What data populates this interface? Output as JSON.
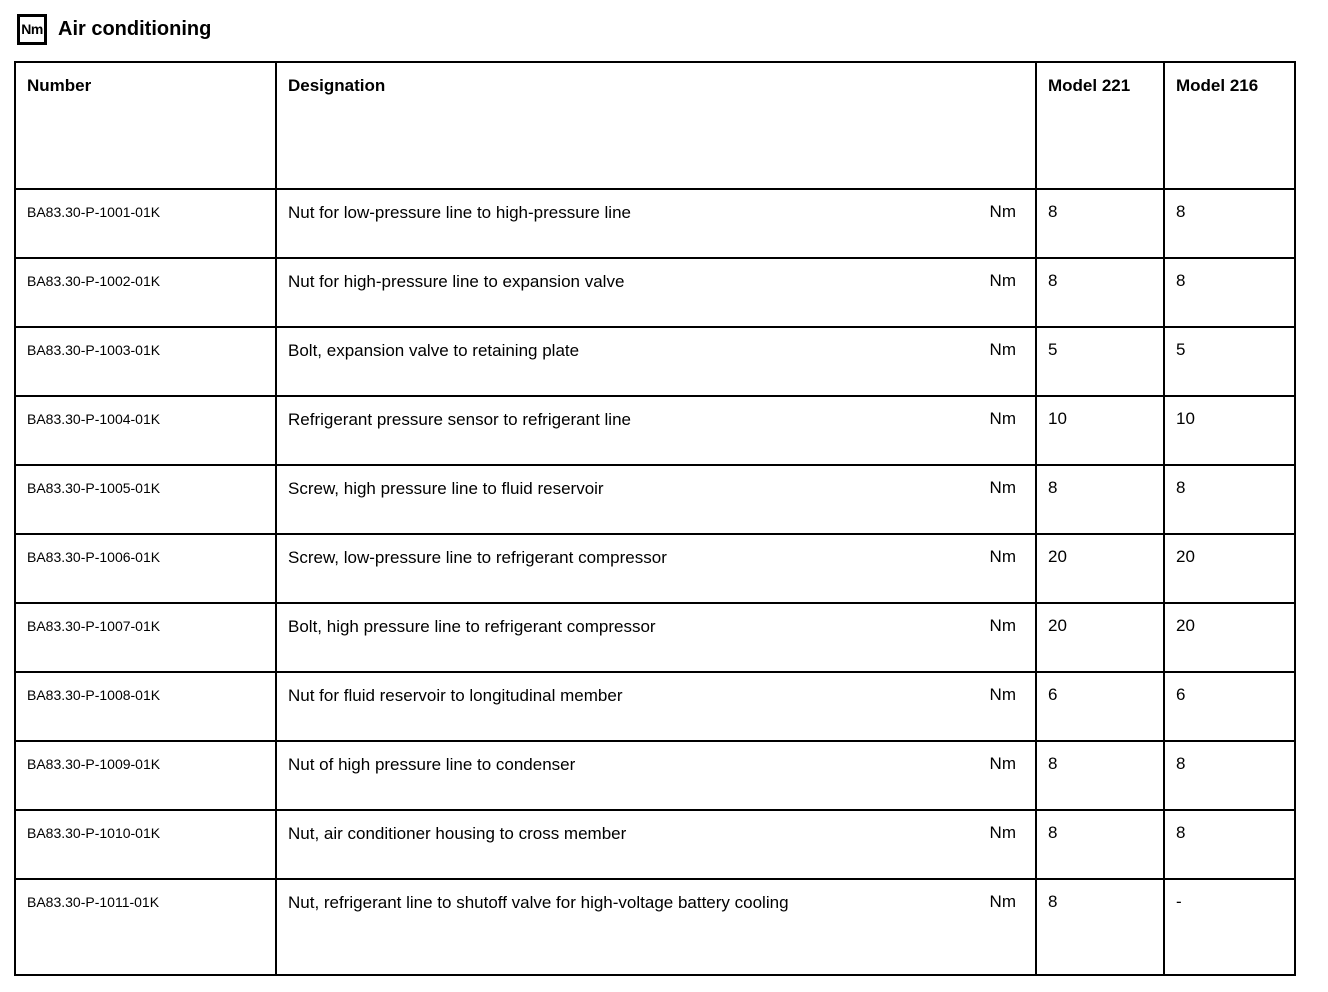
{
  "header": {
    "icon_label": "Nm",
    "title": "Air conditioning"
  },
  "table": {
    "headers": {
      "number": "Number",
      "designation": "Designation",
      "model221": "Model 221",
      "model216": "Model 216"
    },
    "rows": [
      {
        "number": "BA83.30-P-1001-01K",
        "designation": "Nut for low-pressure line to high-pressure line",
        "unit": "Nm",
        "model221": "8",
        "model216": "8"
      },
      {
        "number": "BA83.30-P-1002-01K",
        "designation": "Nut for high-pressure line to expansion valve",
        "unit": "Nm",
        "model221": "8",
        "model216": "8"
      },
      {
        "number": "BA83.30-P-1003-01K",
        "designation": "Bolt, expansion valve to retaining plate",
        "unit": "Nm",
        "model221": "5",
        "model216": "5"
      },
      {
        "number": "BA83.30-P-1004-01K",
        "designation": "Refrigerant pressure sensor to refrigerant line",
        "unit": "Nm",
        "model221": "10",
        "model216": "10"
      },
      {
        "number": "BA83.30-P-1005-01K",
        "designation": "Screw, high pressure line to fluid reservoir",
        "unit": "Nm",
        "model221": "8",
        "model216": "8"
      },
      {
        "number": "BA83.30-P-1006-01K",
        "designation": "Screw, low-pressure line to refrigerant compressor",
        "unit": "Nm",
        "model221": "20",
        "model216": "20"
      },
      {
        "number": "BA83.30-P-1007-01K",
        "designation": "Bolt, high pressure line to refrigerant compressor",
        "unit": "Nm",
        "model221": "20",
        "model216": "20"
      },
      {
        "number": "BA83.30-P-1008-01K",
        "designation": "Nut for fluid reservoir to longitudinal member",
        "unit": "Nm",
        "model221": "6",
        "model216": "6"
      },
      {
        "number": "BA83.30-P-1009-01K",
        "designation": "Nut of high pressure line to condenser",
        "unit": "Nm",
        "model221": "8",
        "model216": "8"
      },
      {
        "number": "BA83.30-P-1010-01K",
        "designation": "Nut, air conditioner housing to cross member",
        "unit": "Nm",
        "model221": "8",
        "model216": "8"
      },
      {
        "number": "BA83.30-P-1011-01K",
        "designation": "Nut, refrigerant line to shutoff valve for high-voltage battery cooling",
        "unit": "Nm",
        "model221": "8",
        "model216": "-"
      }
    ]
  }
}
